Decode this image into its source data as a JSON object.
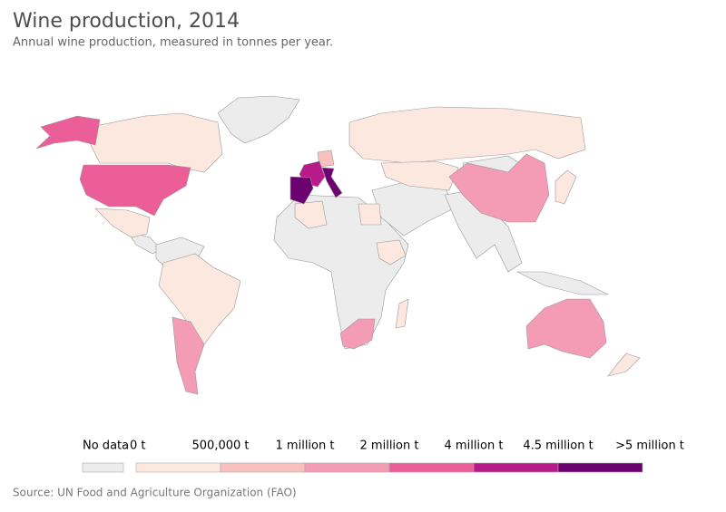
{
  "title": "Wine production, 2014",
  "subtitle": "Annual wine production, measured in tonnes per year.",
  "legend": {
    "no_data": {
      "label": "No data",
      "color": "#ececec"
    },
    "labels": [
      "0 t",
      "500,000 t",
      "1 million t",
      "2 million t",
      "4 million t",
      "4.5 million t",
      ">5 million t"
    ],
    "colors": [
      "#fde8e0",
      "#f8c0bf",
      "#f49bb5",
      "#eb5e98",
      "#b91a8a",
      "#6b0270"
    ]
  },
  "source": "Source: UN Food and Agriculture Organization (FAO)"
}
